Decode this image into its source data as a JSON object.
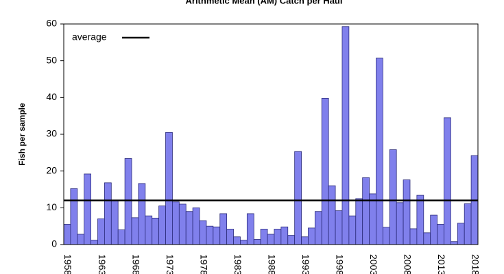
{
  "chart_data": {
    "type": "bar",
    "title": "Arithmetic Mean (AM) Catch per Haul",
    "ylabel": "Fish per sample",
    "categories": [
      "1958",
      null,
      null,
      null,
      null,
      "1963",
      null,
      null,
      null,
      null,
      "1968",
      null,
      null,
      null,
      null,
      "1973",
      null,
      null,
      null,
      null,
      "1978",
      null,
      null,
      null,
      null,
      "1983",
      null,
      null,
      null,
      null,
      "1988",
      null,
      null,
      null,
      null,
      "1993",
      null,
      null,
      null,
      null,
      "1998",
      null,
      null,
      null,
      null,
      "2003",
      null,
      null,
      null,
      null,
      "2008",
      null,
      null,
      null,
      null,
      "2013",
      null,
      null,
      null,
      null,
      "2018"
    ],
    "values": [
      5.5,
      15.2,
      2.8,
      19.2,
      1.2,
      7.0,
      16.8,
      12.0,
      4.0,
      23.4,
      7.3,
      16.6,
      7.8,
      7.2,
      10.5,
      30.5,
      11.6,
      11.0,
      9.0,
      10.0,
      6.5,
      5.0,
      4.8,
      8.4,
      4.2,
      2.1,
      1.2,
      8.4,
      1.4,
      4.2,
      2.8,
      4.2,
      4.8,
      2.5,
      25.3,
      2.1,
      4.5,
      9.0,
      39.8,
      16.0,
      9.2,
      59.3,
      7.8,
      12.5,
      18.2,
      13.8,
      50.7,
      4.7,
      25.8,
      11.4,
      17.6,
      4.3,
      13.4,
      3.2,
      8.0,
      5.5,
      34.5,
      0.8,
      5.8,
      11.1,
      24.2
    ],
    "color": "#8080ec",
    "average": {
      "label": "average",
      "value": 12,
      "color": "#000000"
    },
    "ylim": [
      0,
      60
    ],
    "yticks": [
      0,
      10,
      20,
      30,
      40,
      50,
      60
    ],
    "grid": false
  }
}
